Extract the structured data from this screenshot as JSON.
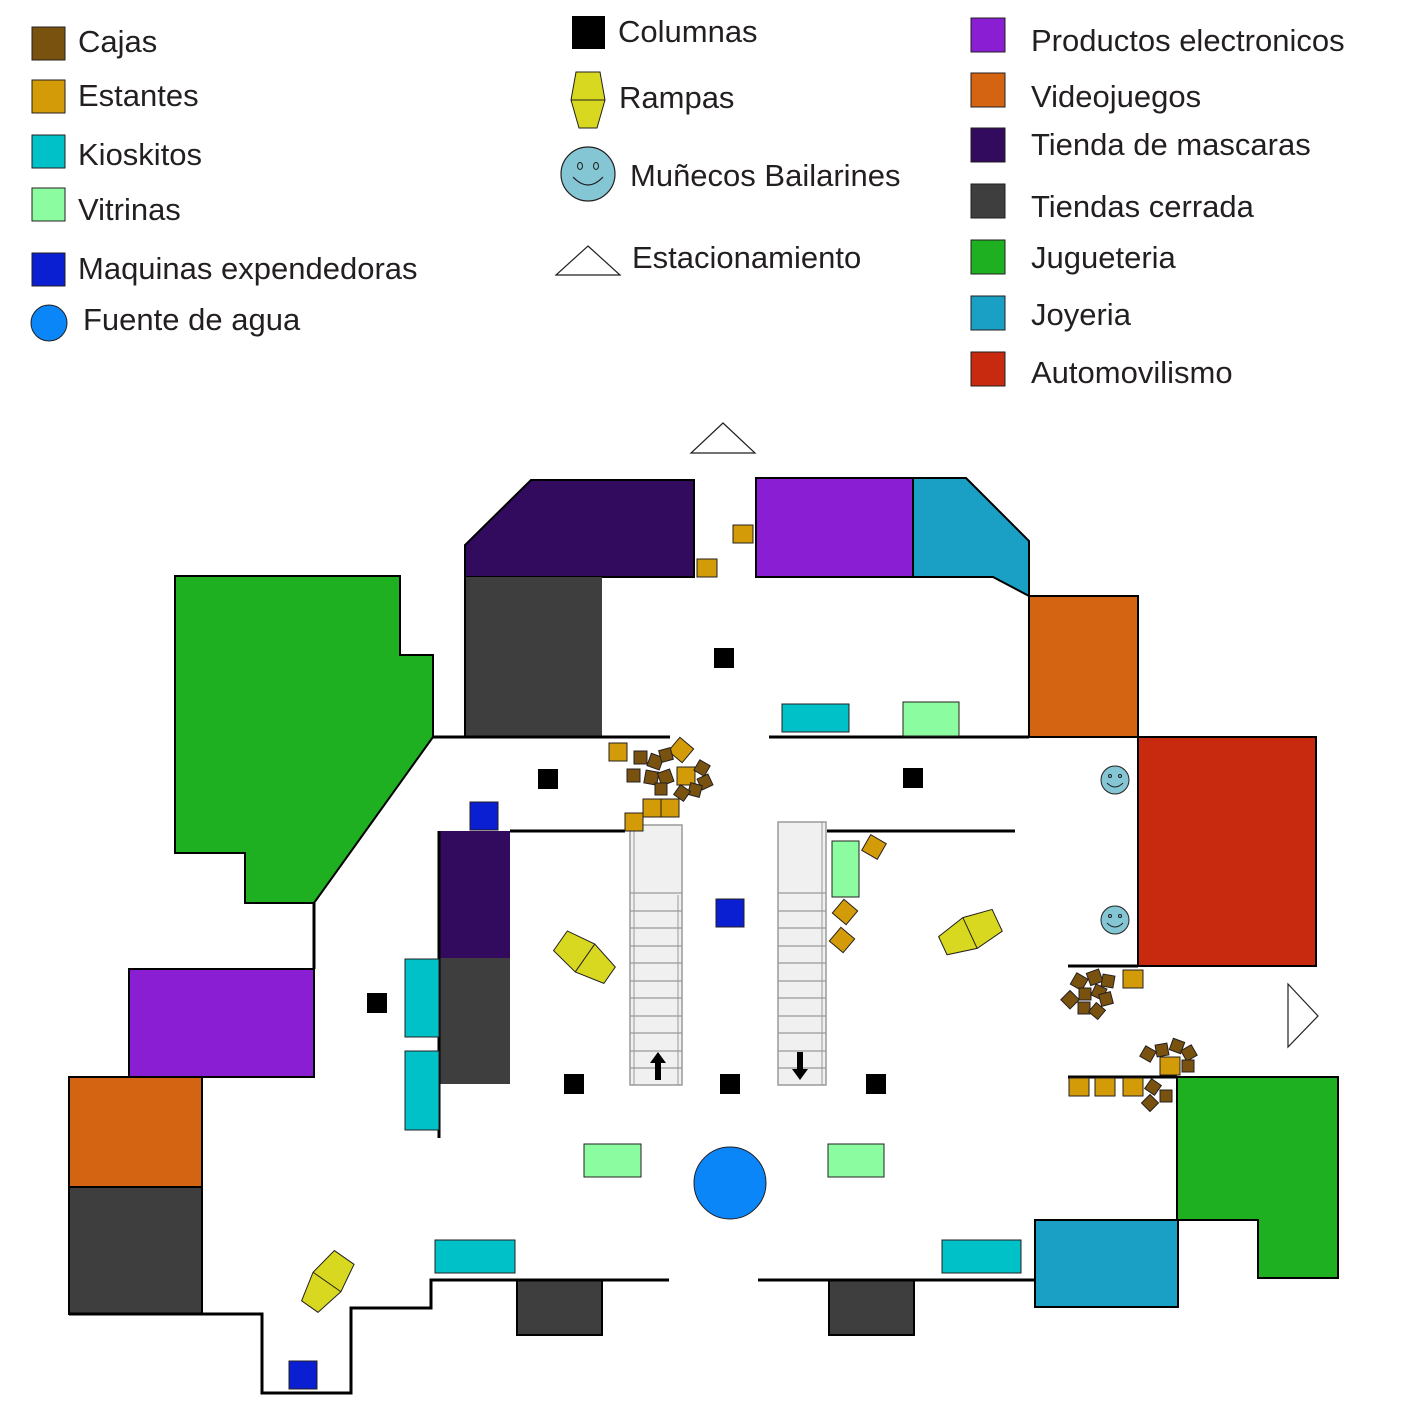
{
  "legend": {
    "col1": [
      {
        "key": "cajas",
        "label": "Cajas",
        "color": "#7a5210",
        "icon": "box-icon"
      },
      {
        "key": "estantes",
        "label": "Estantes",
        "color": "#d49b08",
        "icon": "shelf-icon"
      },
      {
        "key": "kioskitos",
        "label": "Kioskitos",
        "color": "#00c0c8",
        "icon": "kiosk-icon"
      },
      {
        "key": "vitrinas",
        "label": "Vitrinas",
        "color": "#8cfca0",
        "icon": "showcase-icon"
      },
      {
        "key": "maquinas",
        "label": "Maquinas expendedoras",
        "color": "#0a1ed2",
        "icon": "vending-machine-icon"
      },
      {
        "key": "fuente",
        "label": "Fuente de agua",
        "color": "#0a86f8",
        "icon": "water-fountain-icon"
      }
    ],
    "col2": [
      {
        "key": "columnas",
        "label": "Columnas",
        "color": "#000000",
        "icon": "column-icon"
      },
      {
        "key": "rampas",
        "label": "Rampas",
        "color": "#d8d820",
        "icon": "ramp-icon"
      },
      {
        "key": "munecos",
        "label": "Muñecos Bailarines",
        "color": "#84c6d4",
        "icon": "smiley-icon"
      },
      {
        "key": "estacionamiento",
        "label": "Estacionamiento",
        "color": "#ffffff",
        "icon": "parking-triangle-icon"
      }
    ],
    "col3": [
      {
        "key": "electronicos",
        "label": "Productos electronicos",
        "color": "#8a1ed2",
        "icon": "store-swatch-icon"
      },
      {
        "key": "videojuegos",
        "label": "Videojuegos",
        "color": "#d46412",
        "icon": "store-swatch-icon"
      },
      {
        "key": "mascaras",
        "label": "Tienda de mascaras",
        "color": "#320a5e",
        "icon": "store-swatch-icon"
      },
      {
        "key": "cerrada",
        "label": "Tiendas cerrada",
        "color": "#3e3e3e",
        "icon": "store-swatch-icon"
      },
      {
        "key": "jugueteria",
        "label": "Jugueteria",
        "color": "#1eb020",
        "icon": "store-swatch-icon"
      },
      {
        "key": "joyeria",
        "label": "Joyeria",
        "color": "#1aa0c4",
        "icon": "store-swatch-icon"
      },
      {
        "key": "automovilismo",
        "label": "Automovilismo",
        "color": "#c82a10",
        "icon": "store-swatch-icon"
      }
    ]
  },
  "colors": {
    "wall": "#000000",
    "stairs": "#f0f0f0",
    "stairs_line": "#9a9a9a",
    "outline": "#231f20"
  }
}
